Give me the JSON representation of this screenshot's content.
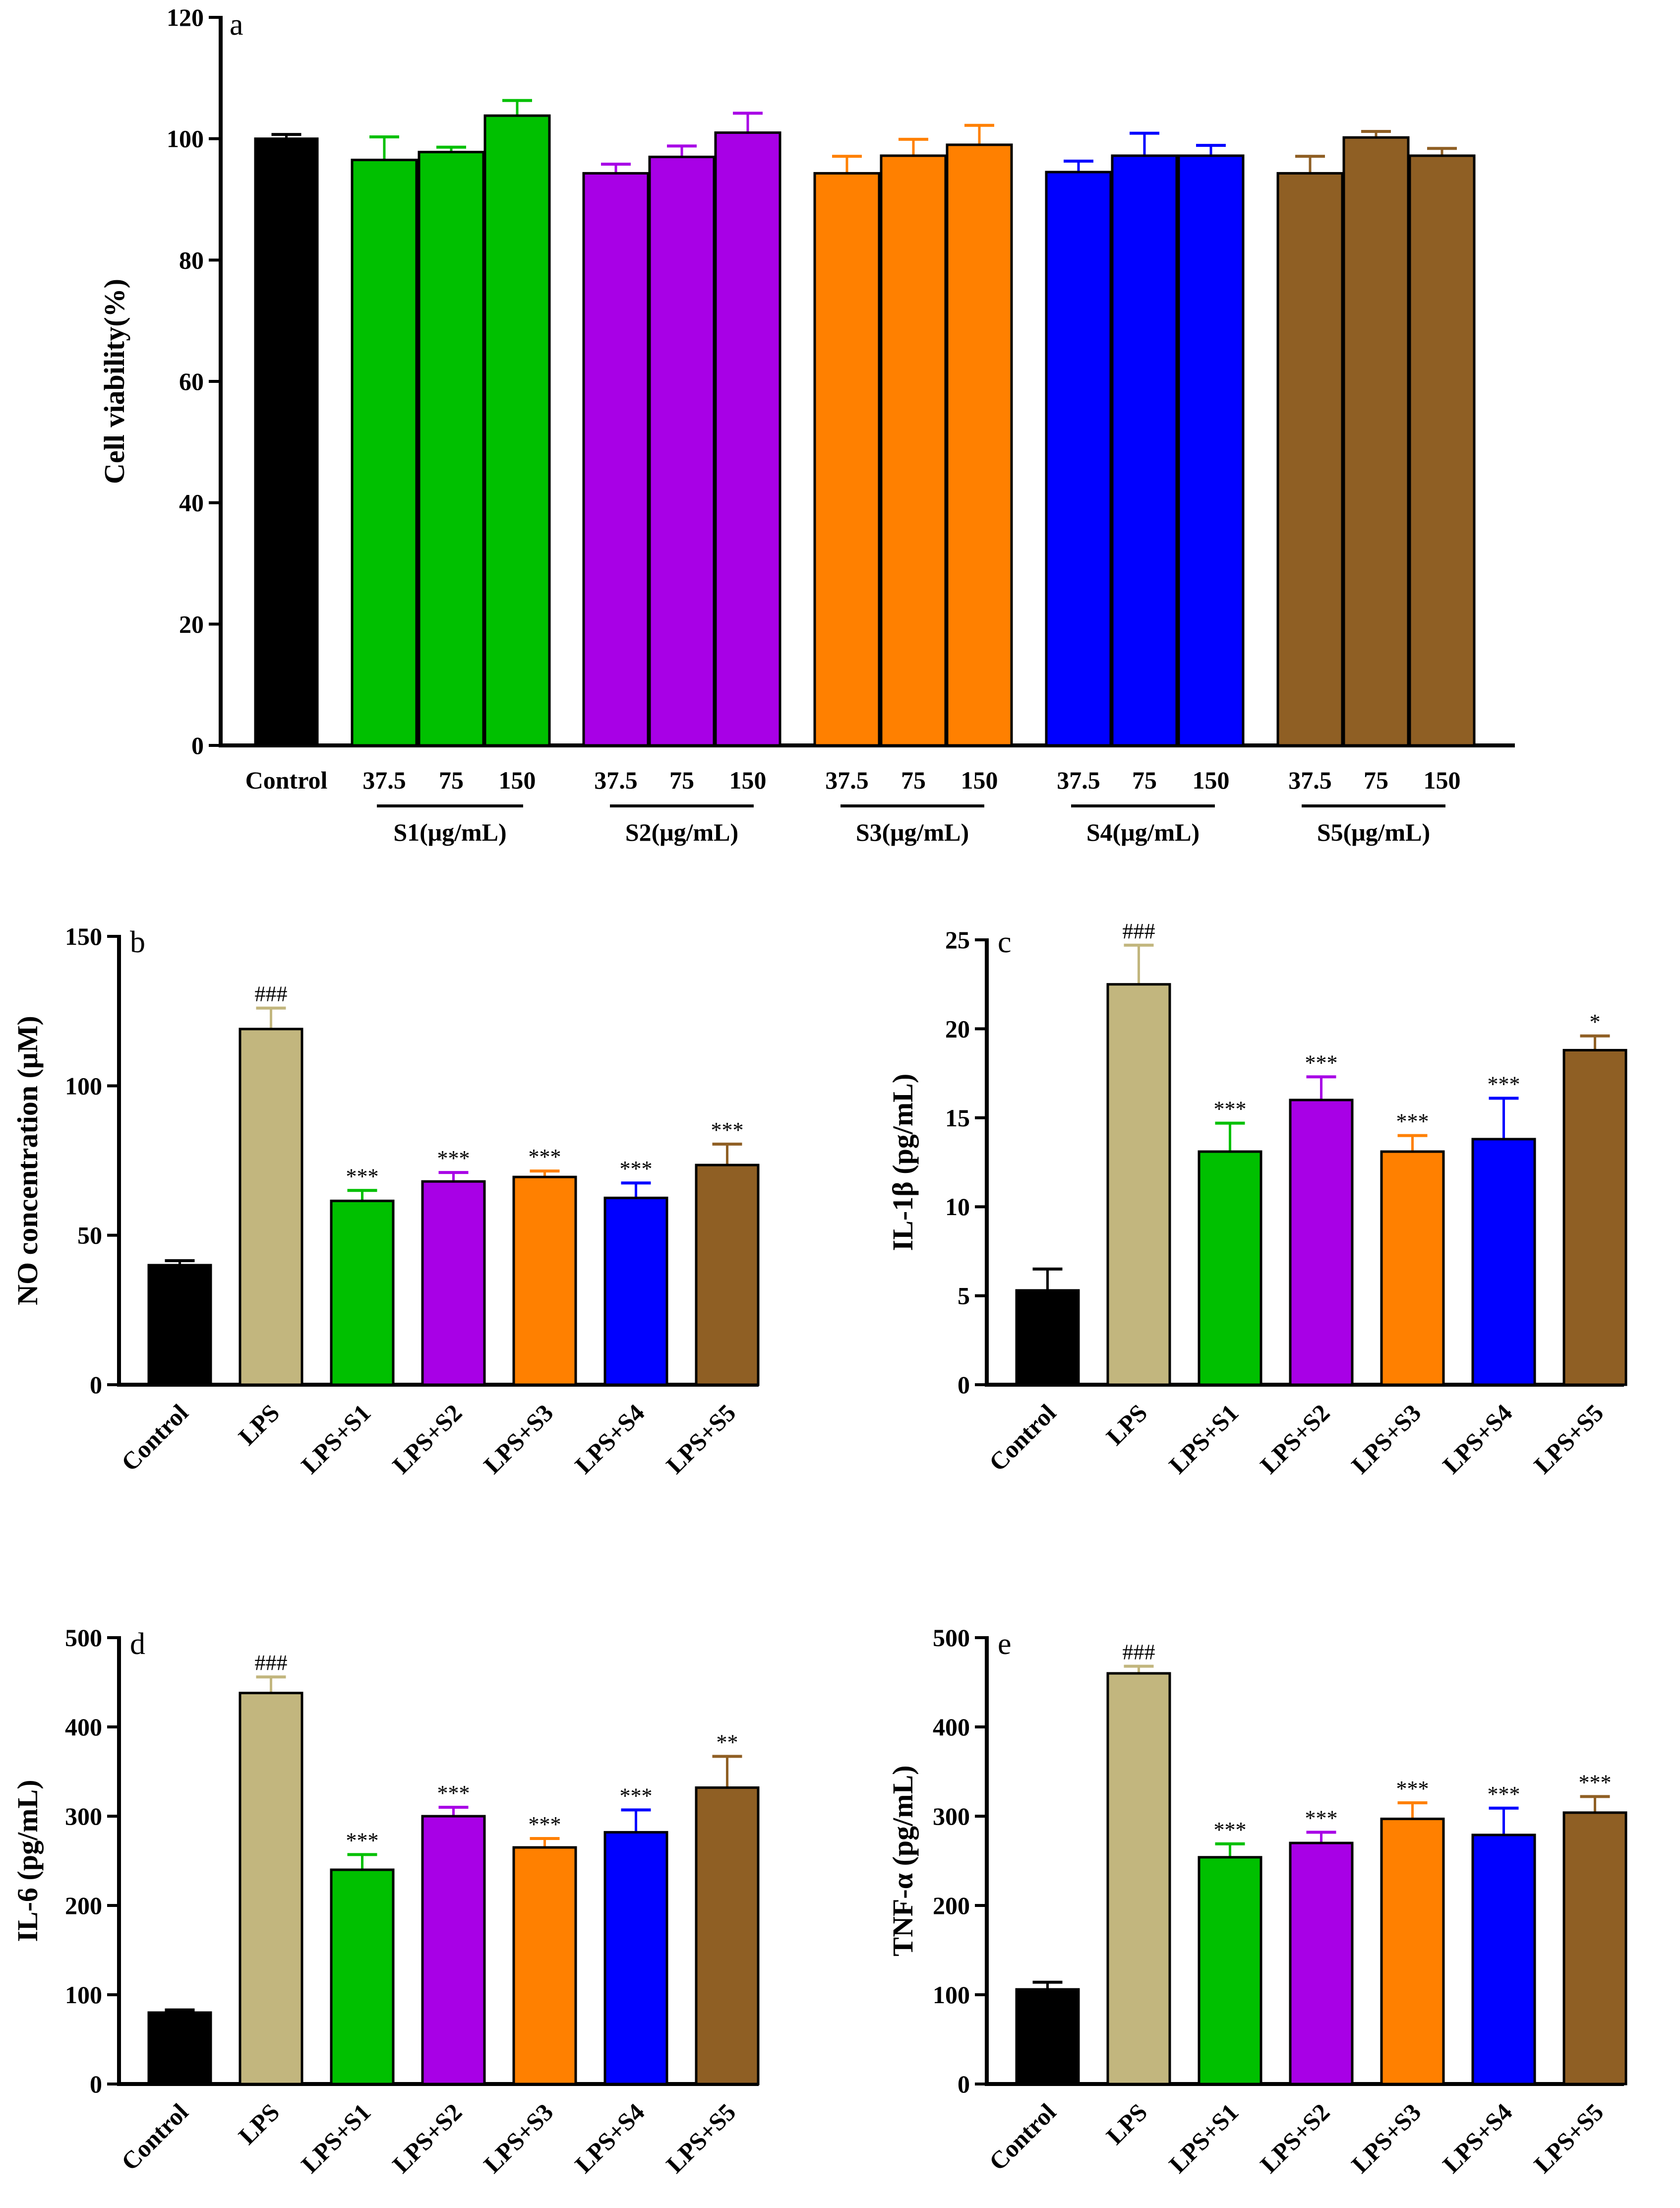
{
  "colors": {
    "Control": "#000000",
    "LPS": "#c2b67e",
    "S1": "#00c000",
    "S2": "#a800e6",
    "S3": "#ff8000",
    "S4": "#0000ff",
    "S5": "#8f5f24"
  },
  "chart_data": [
    {
      "type": "bar",
      "panel": "a",
      "ylabel": "Cell viability(%)",
      "ylim": [
        0,
        120
      ],
      "yticks": [
        0,
        20,
        40,
        60,
        80,
        100,
        120
      ],
      "bars": [
        {
          "group": "Control",
          "label": "Control",
          "value": 100,
          "error": 0.7,
          "color_key": "Control"
        },
        {
          "group": "S1",
          "label": "37.5",
          "value": 96.5,
          "error": 3.8,
          "color_key": "S1"
        },
        {
          "group": "S1",
          "label": "75",
          "value": 97.8,
          "error": 0.8,
          "color_key": "S1"
        },
        {
          "group": "S1",
          "label": "150",
          "value": 103.8,
          "error": 2.5,
          "color_key": "S1"
        },
        {
          "group": "S2",
          "label": "37.5",
          "value": 94.3,
          "error": 1.5,
          "color_key": "S2"
        },
        {
          "group": "S2",
          "label": "75",
          "value": 97,
          "error": 1.8,
          "color_key": "S2"
        },
        {
          "group": "S2",
          "label": "150",
          "value": 101,
          "error": 3.2,
          "color_key": "S2"
        },
        {
          "group": "S3",
          "label": "37.5",
          "value": 94.3,
          "error": 2.8,
          "color_key": "S3"
        },
        {
          "group": "S3",
          "label": "75",
          "value": 97.2,
          "error": 2.7,
          "color_key": "S3"
        },
        {
          "group": "S3",
          "label": "150",
          "value": 99,
          "error": 3.2,
          "color_key": "S3"
        },
        {
          "group": "S4",
          "label": "37.5",
          "value": 94.5,
          "error": 1.8,
          "color_key": "S4"
        },
        {
          "group": "S4",
          "label": "75",
          "value": 97.2,
          "error": 3.7,
          "color_key": "S4"
        },
        {
          "group": "S4",
          "label": "150",
          "value": 97.2,
          "error": 1.7,
          "color_key": "S4"
        },
        {
          "group": "S5",
          "label": "37.5",
          "value": 94.3,
          "error": 2.8,
          "color_key": "S5"
        },
        {
          "group": "S5",
          "label": "75",
          "value": 100.2,
          "error": 1,
          "color_key": "S5"
        },
        {
          "group": "S5",
          "label": "150",
          "value": 97.2,
          "error": 1.2,
          "color_key": "S5"
        }
      ],
      "group_labels": [
        {
          "group": "S1",
          "text": "S1(μg/mL)"
        },
        {
          "group": "S2",
          "text": "S2(μg/mL)"
        },
        {
          "group": "S3",
          "text": "S3(μg/mL)"
        },
        {
          "group": "S4",
          "text": "S4(μg/mL)"
        },
        {
          "group": "S5",
          "text": "S5(μg/mL)"
        }
      ]
    },
    {
      "type": "bar",
      "panel": "b",
      "ylabel": "NO concentration (μM)",
      "ylim": [
        0,
        150
      ],
      "yticks": [
        0,
        50,
        100,
        150
      ],
      "categories": [
        "Control",
        "LPS",
        "LPS+S1",
        "LPS+S2",
        "LPS+S3",
        "LPS+S4",
        "LPS+S5"
      ],
      "color_keys": [
        "Control",
        "LPS",
        "S1",
        "S2",
        "S3",
        "S4",
        "S5"
      ],
      "values": [
        40,
        119,
        61.5,
        68,
        69.5,
        62.5,
        73.5
      ],
      "errors": [
        1.5,
        7,
        3.5,
        3,
        2,
        5,
        7
      ],
      "significance": [
        "",
        "###",
        "***",
        "***",
        "***",
        "***",
        "***"
      ]
    },
    {
      "type": "bar",
      "panel": "c",
      "ylabel": "IL-1β (pg/mL)",
      "ylim": [
        0,
        25
      ],
      "yticks": [
        0,
        5,
        10,
        15,
        20,
        25
      ],
      "categories": [
        "Control",
        "LPS",
        "LPS+S1",
        "LPS+S2",
        "LPS+S3",
        "LPS+S4",
        "LPS+S5"
      ],
      "color_keys": [
        "Control",
        "LPS",
        "S1",
        "S2",
        "S3",
        "S4",
        "S5"
      ],
      "values": [
        5.3,
        22.5,
        13.1,
        16,
        13.1,
        13.8,
        18.8
      ],
      "errors": [
        1.2,
        2.2,
        1.6,
        1.3,
        0.9,
        2.3,
        0.8
      ],
      "significance": [
        "",
        "###",
        "***",
        "***",
        "***",
        "***",
        "*"
      ]
    },
    {
      "type": "bar",
      "panel": "d",
      "ylabel": "IL-6 (pg/mL)",
      "ylim": [
        0,
        500
      ],
      "yticks": [
        0,
        100,
        200,
        300,
        400,
        500
      ],
      "categories": [
        "Control",
        "LPS",
        "LPS+S1",
        "LPS+S2",
        "LPS+S3",
        "LPS+S4",
        "LPS+S5"
      ],
      "color_keys": [
        "Control",
        "LPS",
        "S1",
        "S2",
        "S3",
        "S4",
        "S5"
      ],
      "values": [
        80,
        438,
        240,
        300,
        265,
        282,
        332
      ],
      "errors": [
        3,
        18,
        17,
        10,
        10,
        25,
        35
      ],
      "significance": [
        "",
        "###",
        "***",
        "***",
        "***",
        "***",
        "**"
      ]
    },
    {
      "type": "bar",
      "panel": "e",
      "ylabel": "TNF-α (pg/mL)",
      "ylim": [
        0,
        500
      ],
      "yticks": [
        0,
        100,
        200,
        300,
        400,
        500
      ],
      "categories": [
        "Control",
        "LPS",
        "LPS+S1",
        "LPS+S2",
        "LPS+S3",
        "LPS+S4",
        "LPS+S5"
      ],
      "color_keys": [
        "Control",
        "LPS",
        "S1",
        "S2",
        "S3",
        "S4",
        "S5"
      ],
      "values": [
        106,
        460,
        254,
        270,
        297,
        279,
        304
      ],
      "errors": [
        8,
        8,
        15,
        12,
        18,
        30,
        18
      ],
      "significance": [
        "",
        "###",
        "***",
        "***",
        "***",
        "***",
        "***"
      ]
    }
  ]
}
